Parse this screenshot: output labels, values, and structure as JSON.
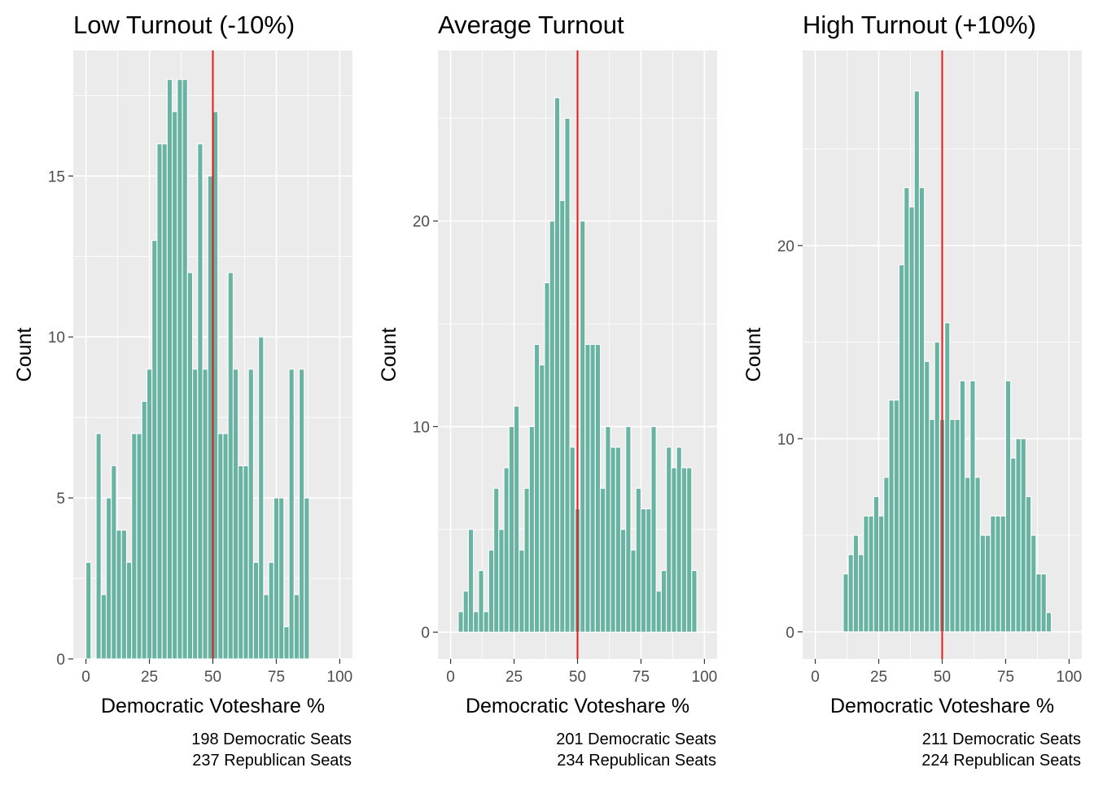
{
  "colors": {
    "panel_background": "#ebebeb",
    "grid": "#ffffff",
    "bar_fill": "#69b3a2",
    "bar_outline": "#ffffff",
    "reference_line": "#e41a1c",
    "text": "#000000",
    "tick_text": "#4d4d4d"
  },
  "chart_data": [
    {
      "type": "bar",
      "title": "Low Turnout (-10%)",
      "xlabel": "Democratic Voteshare %",
      "ylabel": "Count",
      "xlim": [
        -5,
        105
      ],
      "ylim": [
        0,
        18.9
      ],
      "xticks": [
        0,
        25,
        50,
        75,
        100
      ],
      "yticks": [
        0,
        5,
        10,
        15
      ],
      "grid": true,
      "reference_line_x": 50,
      "bin_start": 1,
      "bin_width": 2,
      "values": [
        3,
        0,
        7,
        2,
        5,
        6,
        4,
        4,
        3,
        7,
        7,
        8,
        9,
        13,
        16,
        16,
        18,
        17,
        18,
        18,
        12,
        9,
        16,
        9,
        15,
        17,
        7,
        7,
        12,
        9,
        6,
        6,
        9,
        3,
        10,
        2,
        3,
        5,
        5,
        1,
        9,
        2,
        9,
        5
      ],
      "caption": [
        "198 Democratic Seats",
        "237 Republican Seats"
      ]
    },
    {
      "type": "bar",
      "title": "Average Turnout",
      "xlabel": "Democratic Voteshare %",
      "ylabel": "Count",
      "xlim": [
        -5,
        105
      ],
      "ylim": [
        -1.3,
        28.3
      ],
      "xticks": [
        0,
        25,
        50,
        75,
        100
      ],
      "yticks": [
        0,
        10,
        20
      ],
      "grid": true,
      "reference_line_x": 50,
      "bin_start": 4,
      "bin_width": 2,
      "values": [
        1,
        2,
        5,
        1,
        3,
        1,
        4,
        7,
        5,
        8,
        10,
        11,
        4,
        7,
        10,
        14,
        13,
        17,
        20,
        26,
        21,
        25,
        9,
        6,
        20,
        14,
        14,
        14,
        7,
        10,
        9,
        9,
        5,
        10,
        4,
        7,
        6,
        6,
        10,
        2,
        3,
        9,
        8,
        9,
        8,
        8,
        3
      ],
      "caption": [
        "201 Democratic Seats",
        "234 Republican Seats"
      ]
    },
    {
      "type": "bar",
      "title": "High Turnout (+10%)",
      "xlabel": "Democratic Voteshare %",
      "ylabel": "Count",
      "xlim": [
        -5,
        105
      ],
      "ylim": [
        -1.4,
        30.1
      ],
      "xticks": [
        0,
        25,
        50,
        75,
        100
      ],
      "yticks": [
        0,
        10,
        20
      ],
      "grid": true,
      "reference_line_x": 50,
      "bin_start": 12,
      "bin_width": 2,
      "values": [
        3,
        4,
        5,
        4,
        6,
        6,
        7,
        6,
        8,
        12,
        12,
        19,
        23,
        22,
        28,
        23,
        14,
        11,
        15,
        11,
        16,
        11,
        11,
        13,
        8,
        13,
        8,
        5,
        5,
        6,
        6,
        6,
        13,
        9,
        10,
        10,
        7,
        5,
        3,
        3,
        1
      ],
      "caption": [
        "211 Democratic Seats",
        "224 Republican Seats"
      ]
    }
  ]
}
